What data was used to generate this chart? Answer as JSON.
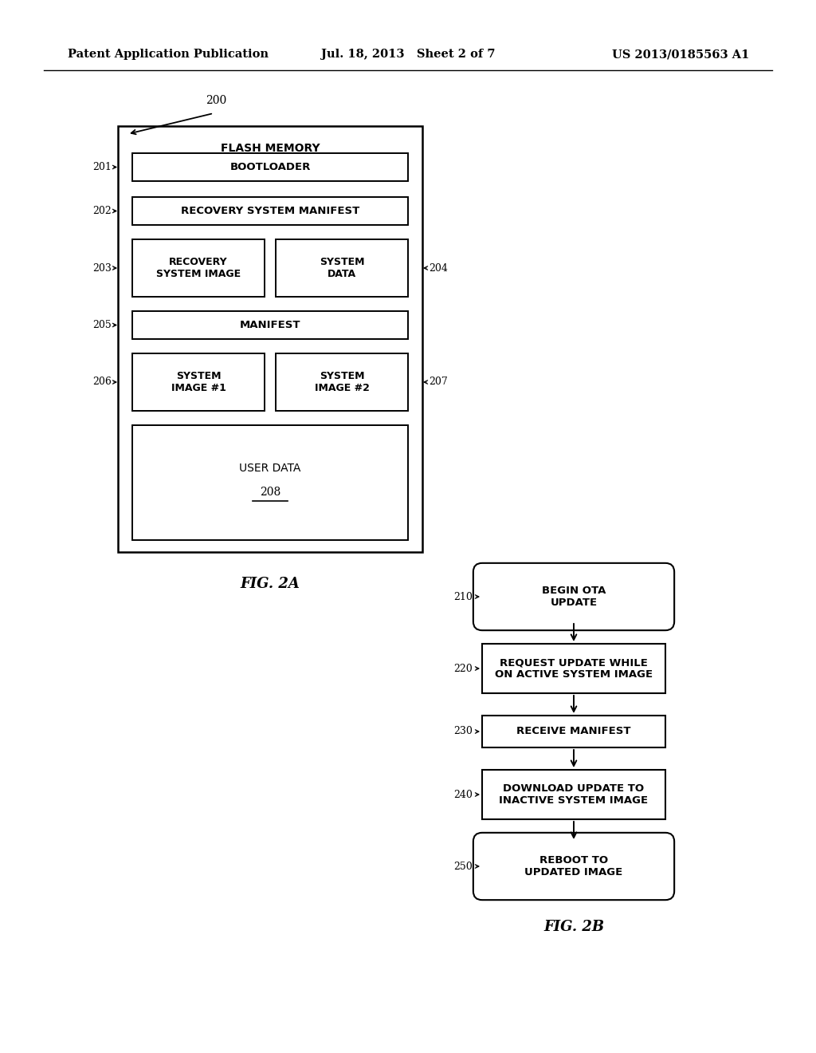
{
  "header_left": "Patent Application Publication",
  "header_center": "Jul. 18, 2013   Sheet 2 of 7",
  "header_right": "US 2013/0185563 A1",
  "fig2a_title": "FIG. 2A",
  "fig2b_title": "FIG. 2B",
  "flash_memory_label": "FLASH MEMORY",
  "bg_color": "#ffffff",
  "box_color": "#ffffff",
  "line_color": "#000000",
  "text_color": "#000000"
}
